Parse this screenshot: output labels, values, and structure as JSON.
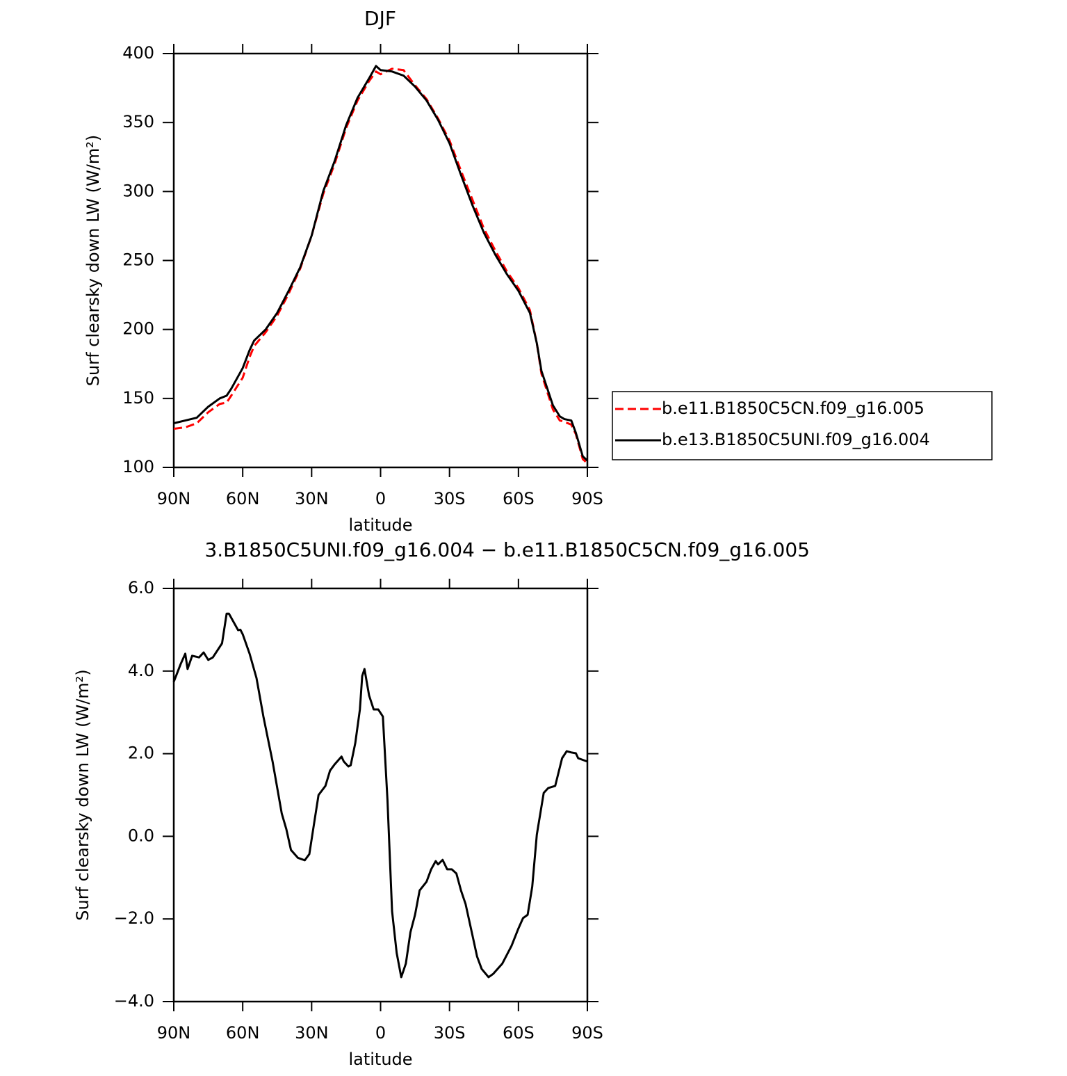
{
  "chart_data": [
    {
      "type": "line",
      "title": "DJF",
      "xlabel": "latitude",
      "ylabel": "Surf clearsky down LW (W/m²)",
      "x": [
        90,
        85,
        80,
        75,
        70,
        67,
        65,
        60,
        57,
        55,
        50,
        45,
        40,
        35,
        30,
        25,
        20,
        15,
        10,
        5,
        2,
        0,
        -5,
        -10,
        -15,
        -20,
        -25,
        -30,
        -35,
        -40,
        -45,
        -50,
        -55,
        -60,
        -65,
        -68,
        -70,
        -75,
        -78,
        -80,
        -83,
        -85,
        -88,
        -90
      ],
      "series": [
        {
          "name": "b.e11.B1850C5CN.f09_g16.005",
          "color": "#ff0000",
          "style": "dashed",
          "values": [
            128,
            129,
            132,
            140,
            146,
            147,
            152,
            165,
            180,
            188,
            198,
            210,
            226,
            244,
            268,
            298,
            320,
            346,
            366,
            380,
            387,
            385,
            389,
            388,
            377,
            367,
            353,
            337,
            315,
            294,
            273,
            257,
            242,
            230,
            214,
            190,
            168,
            142,
            134,
            133,
            131,
            124,
            106,
            103
          ]
        },
        {
          "name": "b.e13.B1850C5UNI.f09_g16.004",
          "color": "#000000",
          "style": "solid",
          "values": [
            132,
            134,
            136,
            144,
            150,
            152,
            157,
            172,
            185,
            192,
            200,
            212,
            228,
            245,
            268,
            300,
            322,
            348,
            368,
            382,
            391,
            388,
            387,
            384,
            376,
            366,
            352,
            335,
            312,
            290,
            270,
            254,
            240,
            228,
            212,
            190,
            170,
            145,
            137,
            135,
            134,
            125,
            108,
            105
          ]
        }
      ],
      "xlim": [
        90,
        -90
      ],
      "xticks": [
        {
          "value": 90,
          "label": "90N"
        },
        {
          "value": 60,
          "label": "60N"
        },
        {
          "value": 30,
          "label": "30N"
        },
        0,
        {
          "value": -30,
          "label": "30S"
        },
        {
          "value": -60,
          "label": "60S"
        },
        {
          "value": -90,
          "label": "90S"
        }
      ],
      "ylim": [
        100,
        400
      ],
      "yticks": [
        100,
        150,
        200,
        250,
        300,
        350,
        400
      ],
      "legend": "right"
    },
    {
      "type": "line",
      "title": "3.B1850C5UNI.f09_g16.004 − b.e11.B1850C5CN.f09_g16.005",
      "xlabel": "latitude",
      "ylabel": "Surf clearsky down LW (W/m²)",
      "x": [
        90,
        87,
        85,
        84,
        82,
        79,
        77,
        75,
        73,
        69,
        67,
        66,
        62,
        61,
        60,
        57,
        54,
        51,
        47,
        43,
        41,
        39,
        36,
        33,
        31,
        29,
        27,
        24,
        22,
        20,
        17,
        16,
        14,
        13,
        11,
        9,
        8,
        7,
        5,
        3,
        1,
        -1,
        -3,
        -5,
        -7,
        -9,
        -11,
        -13,
        -15,
        -17,
        -20,
        -22,
        -24,
        -25,
        -27,
        -29,
        -31,
        -33,
        -35,
        -37,
        -40,
        -42,
        -44,
        -47,
        -49,
        -53,
        -57,
        -60,
        -62,
        -64,
        -66,
        -68,
        -71,
        -73,
        -76,
        -79,
        -81,
        -83,
        -85,
        -86,
        -90
      ],
      "values": [
        3.74,
        4.17,
        4.42,
        4.05,
        4.37,
        4.33,
        4.45,
        4.27,
        4.33,
        4.67,
        5.39,
        5.39,
        4.99,
        5.0,
        4.89,
        4.42,
        3.83,
        2.9,
        1.81,
        0.55,
        0.17,
        -0.33,
        -0.52,
        -0.58,
        -0.43,
        0.29,
        1.0,
        1.22,
        1.59,
        1.74,
        1.93,
        1.81,
        1.69,
        1.72,
        2.26,
        3.07,
        3.88,
        4.05,
        3.41,
        3.07,
        3.07,
        2.9,
        0.88,
        -1.81,
        -2.82,
        -3.41,
        -3.08,
        -2.32,
        -1.9,
        -1.31,
        -1.1,
        -0.8,
        -0.6,
        -0.68,
        -0.57,
        -0.8,
        -0.8,
        -0.9,
        -1.31,
        -1.64,
        -2.4,
        -2.91,
        -3.21,
        -3.41,
        -3.33,
        -3.08,
        -2.65,
        -2.23,
        -1.98,
        -1.9,
        -1.22,
        0.04,
        1.05,
        1.17,
        1.22,
        1.89,
        2.06,
        2.03,
        2.01,
        1.89,
        1.81
      ],
      "color": "#000000",
      "style": "solid",
      "xlim": [
        90,
        -90
      ],
      "xticks": [
        {
          "value": 90,
          "label": "90N"
        },
        {
          "value": 60,
          "label": "60N"
        },
        {
          "value": 30,
          "label": "30N"
        },
        0,
        {
          "value": -30,
          "label": "30S"
        },
        {
          "value": -60,
          "label": "60S"
        },
        {
          "value": -90,
          "label": "90S"
        }
      ],
      "ylim": [
        -4,
        6
      ],
      "yticks": [
        {
          "value": -4,
          "label": "−4.0"
        },
        {
          "value": -2,
          "label": "−2.0"
        },
        {
          "value": 0,
          "label": "0.0"
        },
        {
          "value": 2,
          "label": "2.0"
        },
        {
          "value": 4,
          "label": "4.0"
        },
        {
          "value": 6,
          "label": "6.0"
        }
      ]
    }
  ]
}
